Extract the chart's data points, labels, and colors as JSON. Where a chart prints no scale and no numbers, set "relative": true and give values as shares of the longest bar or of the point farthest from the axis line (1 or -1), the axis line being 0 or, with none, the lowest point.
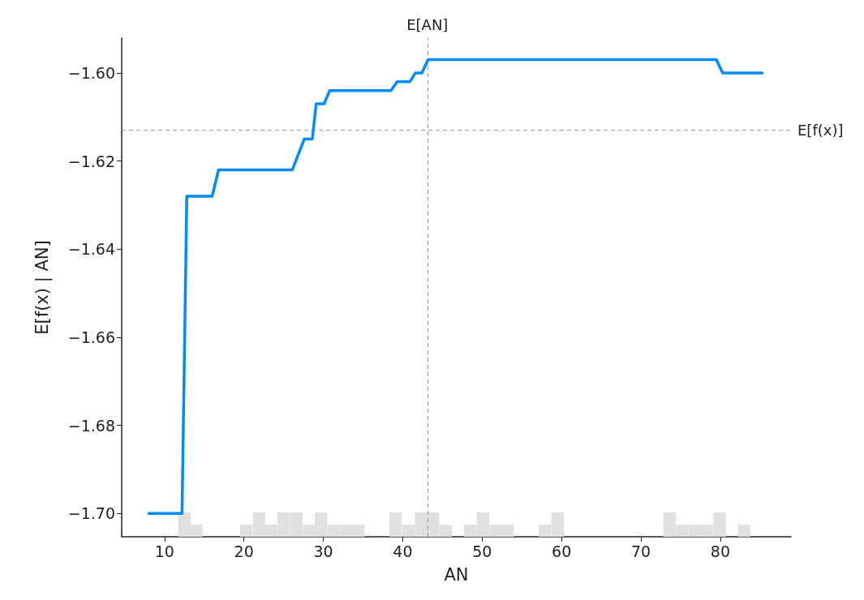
{
  "chart_data": [
    {
      "type": "line",
      "ylabel": "E[f(x) | AN]",
      "tick_labels": "y",
      "xlim": [
        4.6,
        88.9
      ],
      "ylim": [
        -1.7053,
        -1.5921
      ],
      "yticks": [
        {
          "value": -1.7,
          "label": "−1.70"
        },
        -1.68,
        -1.66,
        -1.64,
        -1.62,
        {
          "value": -1.6,
          "label": "−1.60"
        }
      ],
      "grid": false,
      "marker": "none",
      "line_style": "solid",
      "series": [
        {
          "color": "#008bfb",
          "x": [
            8.0,
            12.2,
            12.8,
            16.0,
            16.8,
            26.1,
            27.6,
            28.6,
            29.1,
            30.1,
            30.8,
            38.5,
            39.3,
            40.9,
            41.6,
            42.4,
            43.2,
            79.5,
            80.3,
            85.3
          ],
          "values": [
            -1.7,
            -1.7,
            -1.628,
            -1.628,
            -1.622,
            -1.622,
            -1.615,
            -1.615,
            -1.607,
            -1.607,
            -1.604,
            -1.604,
            -1.602,
            -1.602,
            -1.6,
            -1.6,
            -1.597,
            -1.597,
            -1.6,
            -1.6
          ]
        }
      ],
      "ref_lines": [
        {
          "axis": "y",
          "value": -1.613,
          "label": "E[f(x)]",
          "color": "#999999",
          "line_style": "dashed"
        },
        {
          "axis": "x",
          "value": 43.1,
          "label": "E[AN]",
          "color": "#999999",
          "line_style": "dashed"
        }
      ]
    },
    {
      "type": "bar",
      "relative": true,
      "tick_labels": "x",
      "xlabel": "AN",
      "xlim": [
        4.6,
        88.9
      ],
      "xticks": [
        10,
        20,
        30,
        40,
        50,
        60,
        70,
        80
      ],
      "color": "#e0e0e0",
      "x": [
        12.5,
        14.0,
        15.6,
        17.2,
        18.8,
        20.3,
        21.9,
        23.4,
        25.0,
        26.6,
        28.2,
        29.7,
        31.3,
        32.9,
        34.4,
        36.0,
        37.6,
        39.1,
        40.7,
        42.3,
        43.8,
        45.4,
        47.0,
        48.5,
        50.1,
        51.7,
        53.2,
        54.8,
        56.4,
        57.9,
        59.5,
        61.1,
        62.6,
        64.2,
        65.8,
        67.3,
        68.9,
        70.5,
        72.0,
        73.6,
        75.2,
        76.8,
        78.3,
        79.9,
        81.5,
        83.0
      ],
      "values": [
        1,
        0.5,
        0,
        0,
        0,
        0.5,
        1,
        0.5,
        1,
        1,
        0.5,
        1,
        0.5,
        0.5,
        0.5,
        0,
        0,
        1,
        0.5,
        1,
        1,
        0.5,
        0,
        0.5,
        1,
        0.5,
        0.5,
        0,
        0,
        0.5,
        1,
        0,
        0,
        0,
        0,
        0,
        0,
        0,
        0,
        1,
        0.5,
        0.5,
        0.5,
        1,
        0,
        0.5
      ]
    }
  ]
}
